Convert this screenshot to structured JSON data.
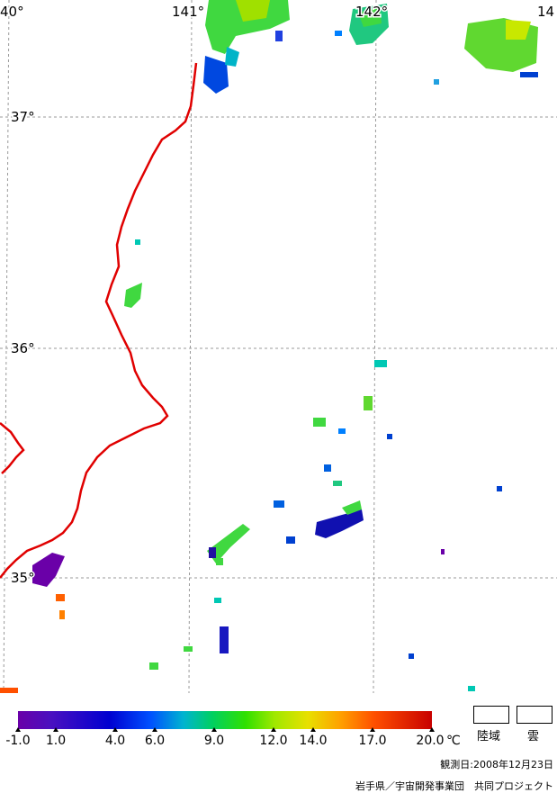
{
  "map": {
    "lat_labels": [
      "37°",
      "36°",
      "35°"
    ],
    "lon_labels": [
      "40°",
      "141°",
      "142°",
      "14"
    ]
  },
  "legend": {
    "scale_ticks": [
      "-1.0",
      "1.0",
      "4.0",
      "6.0",
      "9.0",
      "12.0",
      "14.0",
      "17.0",
      "20.0"
    ],
    "unit": "℃",
    "land_label": "陸域",
    "cloud_label": "雲"
  },
  "footer": {
    "observation_date": "観測日:2008年12月23日",
    "credit": "岩手県／宇宙開発事業団　共同プロジェクト"
  },
  "colors": {
    "coastline": "#e00000",
    "sst_high": "#c80000",
    "sst_low": "#6a00a8"
  }
}
